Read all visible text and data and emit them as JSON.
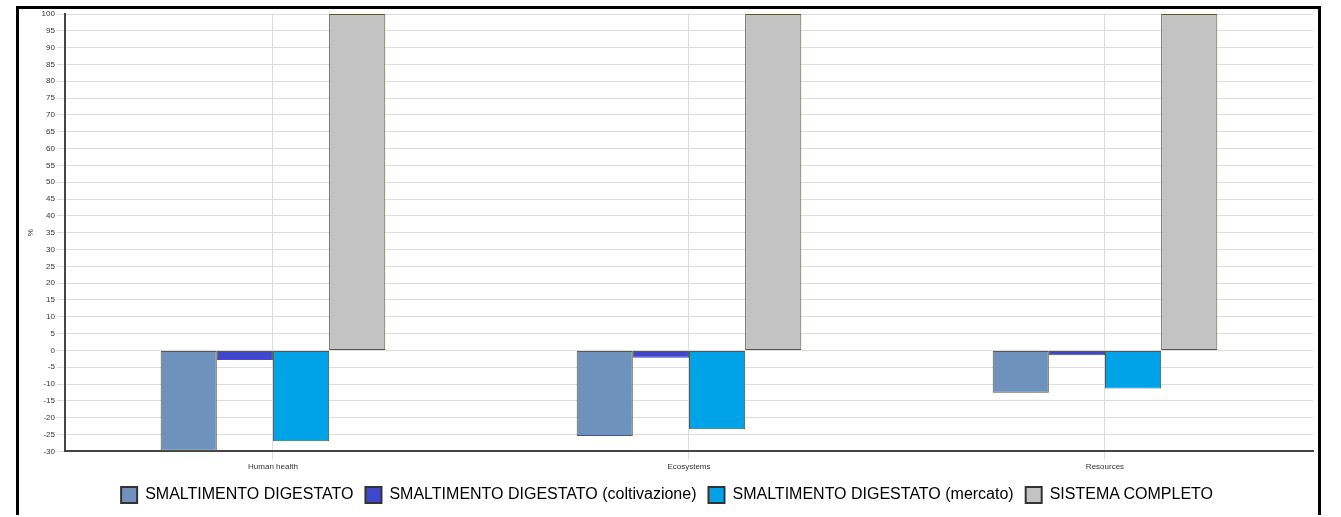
{
  "chart_data": {
    "type": "bar",
    "ylabel": "%",
    "categories": [
      "Human health",
      "Ecosystems",
      "Resources"
    ],
    "series": [
      {
        "name": "SMALTIMENTO DIGESTATO",
        "color": "#6f92bd",
        "values": [
          -29.8,
          -25.4,
          -12.6
        ]
      },
      {
        "name": "SMALTIMENTO DIGESTATO (coltivazione)",
        "color": "#3f48cc",
        "values": [
          -2.8,
          -2.2,
          -1.4
        ]
      },
      {
        "name": "SMALTIMENTO DIGESTATO (mercato)",
        "color": "#00a2e8",
        "values": [
          -27,
          -23.4,
          -11.3
        ]
      },
      {
        "name": "SISTEMA COMPLETO",
        "color": "#c3c3c3",
        "values": [
          100,
          100,
          100
        ]
      }
    ],
    "ylim": [
      -30,
      100
    ],
    "yticks": [
      -30,
      -25,
      -20,
      -15,
      -10,
      -5,
      0,
      5,
      10,
      15,
      20,
      25,
      30,
      35,
      40,
      45,
      50,
      55,
      60,
      65,
      70,
      75,
      80,
      85,
      90,
      95,
      100
    ],
    "grid": true,
    "legend": "bottom"
  }
}
